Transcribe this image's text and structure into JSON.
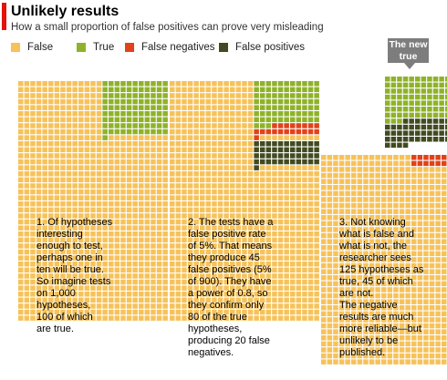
{
  "header": {
    "title": "Unlikely results",
    "subtitle": "How a small proportion of false positives can prove very misleading"
  },
  "legend": [
    {
      "label": "False",
      "color": "#f6c25a"
    },
    {
      "label": "True",
      "color": "#8fb22a"
    },
    {
      "label": "False negatives",
      "color": "#e0421a"
    },
    {
      "label": "False positives",
      "color": "#424a21"
    }
  ],
  "colors": {
    "false": "#f6c25a",
    "true": "#8fb22a",
    "false_negative": "#e0421a",
    "false_positive": "#424a21",
    "grid_gap": "#ffffff",
    "callout": "#7d7d7d",
    "accent": "#e3120b"
  },
  "panels": [
    {
      "text": "1. Of hypotheses\ninteresting\nenough to test,\nperhaps one in\nten will be true.\nSo imagine tests\non 1,000\nhypotheses,\n100 of which\nare true.",
      "total": 1000,
      "true": 100,
      "false_positives": 0,
      "false_negatives": 0
    },
    {
      "text": "2. The tests have a\nfalse positive rate\nof 5%. That means\nthey produce 45\nfalse positives (5%\nof 900). They have\na power of 0.8, so\nthey confirm only\n80 of the true\nhypotheses,\nproducing 20 false\nnegatives.",
      "total": 1000,
      "true": 100,
      "false_positives": 45,
      "false_negatives": 20
    },
    {
      "text": "3. Not knowing\nwhat is false and\nwhat is not, the\nresearcher sees\n125 hypotheses as\ntrue, 45 of which\nare not.\nThe negative\nresults are much\nmore reliable—but\nunlikely to be\npublished.",
      "total": 1000,
      "true": 100,
      "false_positives": 45,
      "false_negatives": 20
    }
  ],
  "callout": {
    "text": "The new\ntrue"
  }
}
